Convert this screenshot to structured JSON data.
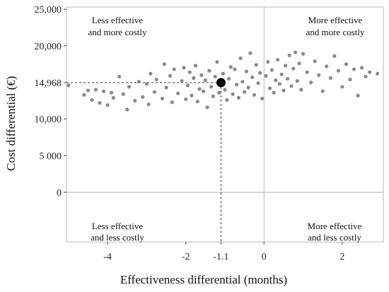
{
  "chart_data": {
    "type": "scatter",
    "xlabel": "Effectiveness differential (months)",
    "ylabel": "Cost differential (€)",
    "xlim": [
      -5.05,
      3.05
    ],
    "ylim": [
      -6800,
      25300
    ],
    "x_ticks": [
      {
        "value": -4,
        "label": "-4"
      },
      {
        "value": -2,
        "label": "-2"
      },
      {
        "value": -1.1,
        "label": "-1.1"
      },
      {
        "value": 0,
        "label": "0"
      },
      {
        "value": 2,
        "label": "2"
      }
    ],
    "y_ticks": [
      {
        "value": 25000,
        "label": "25,000"
      },
      {
        "value": 20000,
        "label": "20,000"
      },
      {
        "value": 14968,
        "label": "14,968"
      },
      {
        "value": 10000,
        "label": "10,000"
      },
      {
        "value": 5000,
        "label": "5 000"
      },
      {
        "value": 0,
        "label": "0"
      }
    ],
    "quadrant_labels": {
      "top_left": [
        "Less effective",
        "and more costly"
      ],
      "top_right": [
        "More effective",
        "and more costly"
      ],
      "bottom_left": [
        "Less effective",
        "and less costly"
      ],
      "bottom_right": [
        "More effective",
        "and less costly"
      ]
    },
    "mean_point": {
      "x": -1.1,
      "y": 14968
    },
    "reference_lines": {
      "x": 0,
      "y": 0
    },
    "grid": false,
    "point_color": "#8a8a8a",
    "mean_color": "#000000",
    "frame_color": "#b9b9b9",
    "series": [
      {
        "values": [
          {
            "x": -5.0,
            "y": 14600
          },
          {
            "x": -4.6,
            "y": 13300
          },
          {
            "x": -4.5,
            "y": 13900
          },
          {
            "x": -4.4,
            "y": 12600
          },
          {
            "x": -4.3,
            "y": 14000
          },
          {
            "x": -4.2,
            "y": 12200
          },
          {
            "x": -4.1,
            "y": 13800
          },
          {
            "x": -4.0,
            "y": 11900
          },
          {
            "x": -3.9,
            "y": 13600
          },
          {
            "x": -3.85,
            "y": 12900
          },
          {
            "x": -3.7,
            "y": 15800
          },
          {
            "x": -3.6,
            "y": 13400
          },
          {
            "x": -3.5,
            "y": 11300
          },
          {
            "x": -3.45,
            "y": 14400
          },
          {
            "x": -3.3,
            "y": 12500
          },
          {
            "x": -3.2,
            "y": 15100
          },
          {
            "x": -3.1,
            "y": 13000
          },
          {
            "x": -3.0,
            "y": 14800
          },
          {
            "x": -2.95,
            "y": 12000
          },
          {
            "x": -2.9,
            "y": 16200
          },
          {
            "x": -2.8,
            "y": 13700
          },
          {
            "x": -2.75,
            "y": 15400
          },
          {
            "x": -2.6,
            "y": 12800
          },
          {
            "x": -2.55,
            "y": 17500
          },
          {
            "x": -2.5,
            "y": 14300
          },
          {
            "x": -2.4,
            "y": 15900
          },
          {
            "x": -2.35,
            "y": 12300
          },
          {
            "x": -2.3,
            "y": 16800
          },
          {
            "x": -2.2,
            "y": 13500
          },
          {
            "x": -2.1,
            "y": 15200
          },
          {
            "x": -2.05,
            "y": 17000
          },
          {
            "x": -2.0,
            "y": 12700
          },
          {
            "x": -1.95,
            "y": 14600
          },
          {
            "x": -1.9,
            "y": 16400
          },
          {
            "x": -1.85,
            "y": 13200
          },
          {
            "x": -1.8,
            "y": 15600
          },
          {
            "x": -1.75,
            "y": 17300
          },
          {
            "x": -1.7,
            "y": 12400
          },
          {
            "x": -1.65,
            "y": 14100
          },
          {
            "x": -1.6,
            "y": 16000
          },
          {
            "x": -1.55,
            "y": 13800
          },
          {
            "x": -1.5,
            "y": 15300
          },
          {
            "x": -1.45,
            "y": 11600
          },
          {
            "x": -1.4,
            "y": 16600
          },
          {
            "x": -1.35,
            "y": 14400
          },
          {
            "x": -1.3,
            "y": 13100
          },
          {
            "x": -1.25,
            "y": 15800
          },
          {
            "x": -1.2,
            "y": 17800
          },
          {
            "x": -1.15,
            "y": 13600
          },
          {
            "x": -1.05,
            "y": 16200
          },
          {
            "x": -1.0,
            "y": 14000
          },
          {
            "x": -0.95,
            "y": 12600
          },
          {
            "x": -0.9,
            "y": 15500
          },
          {
            "x": -0.85,
            "y": 17100
          },
          {
            "x": -0.8,
            "y": 13400
          },
          {
            "x": -0.75,
            "y": 16800
          },
          {
            "x": -0.7,
            "y": 14700
          },
          {
            "x": -0.65,
            "y": 12900
          },
          {
            "x": -0.6,
            "y": 18300
          },
          {
            "x": -0.55,
            "y": 15100
          },
          {
            "x": -0.5,
            "y": 13700
          },
          {
            "x": -0.45,
            "y": 16500
          },
          {
            "x": -0.4,
            "y": 14300
          },
          {
            "x": -0.35,
            "y": 19000
          },
          {
            "x": -0.3,
            "y": 15700
          },
          {
            "x": -0.25,
            "y": 13300
          },
          {
            "x": -0.2,
            "y": 17400
          },
          {
            "x": -0.15,
            "y": 14900
          },
          {
            "x": -0.1,
            "y": 16300
          },
          {
            "x": -0.05,
            "y": 12800
          },
          {
            "x": 0.05,
            "y": 15900
          },
          {
            "x": 0.1,
            "y": 17800
          },
          {
            "x": 0.15,
            "y": 14200
          },
          {
            "x": 0.2,
            "y": 16700
          },
          {
            "x": 0.25,
            "y": 13600
          },
          {
            "x": 0.3,
            "y": 15300
          },
          {
            "x": 0.35,
            "y": 18100
          },
          {
            "x": 0.4,
            "y": 14800
          },
          {
            "x": 0.45,
            "y": 16100
          },
          {
            "x": 0.5,
            "y": 13900
          },
          {
            "x": 0.55,
            "y": 17300
          },
          {
            "x": 0.6,
            "y": 15500
          },
          {
            "x": 0.65,
            "y": 18700
          },
          {
            "x": 0.7,
            "y": 14500
          },
          {
            "x": 0.75,
            "y": 16900
          },
          {
            "x": 0.8,
            "y": 19100
          },
          {
            "x": 0.85,
            "y": 15200
          },
          {
            "x": 0.9,
            "y": 17600
          },
          {
            "x": 0.95,
            "y": 14000
          },
          {
            "x": 1.0,
            "y": 18900
          },
          {
            "x": 1.1,
            "y": 16400
          },
          {
            "x": 1.2,
            "y": 15000
          },
          {
            "x": 1.3,
            "y": 17900
          },
          {
            "x": 1.4,
            "y": 16000
          },
          {
            "x": 1.5,
            "y": 13800
          },
          {
            "x": 1.6,
            "y": 17200
          },
          {
            "x": 1.7,
            "y": 15600
          },
          {
            "x": 1.8,
            "y": 18600
          },
          {
            "x": 1.9,
            "y": 16600
          },
          {
            "x": 2.0,
            "y": 14400
          },
          {
            "x": 2.1,
            "y": 17500
          },
          {
            "x": 2.2,
            "y": 15400
          },
          {
            "x": 2.3,
            "y": 16800
          },
          {
            "x": 2.4,
            "y": 13200
          },
          {
            "x": 2.5,
            "y": 17000
          },
          {
            "x": 2.6,
            "y": 15800
          },
          {
            "x": 2.7,
            "y": 16400
          },
          {
            "x": 2.9,
            "y": 16200
          }
        ]
      }
    ]
  }
}
